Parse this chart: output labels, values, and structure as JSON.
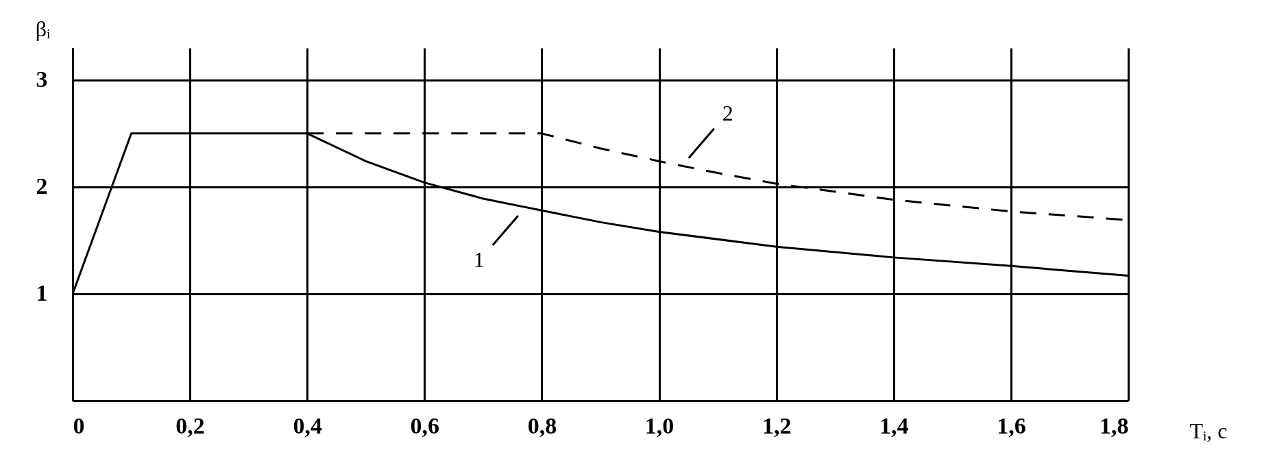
{
  "chart_data": {
    "type": "line",
    "xlabel": "Tᵢ, с",
    "ylabel": "βᵢ",
    "xlim": [
      0,
      1.8
    ],
    "ylim": [
      0,
      3.3
    ],
    "xticks": [
      0,
      {
        "value": 0.2,
        "label": "0,2"
      },
      {
        "value": 0.4,
        "label": "0,4"
      },
      {
        "value": 0.6,
        "label": "0,6"
      },
      {
        "value": 0.8,
        "label": "0,8"
      },
      {
        "value": 1.0,
        "label": "1,0"
      },
      {
        "value": 1.2,
        "label": "1,2"
      },
      {
        "value": 1.4,
        "label": "1,4"
      },
      {
        "value": 1.6,
        "label": "1,6"
      },
      {
        "value": 1.8,
        "label": "1,8"
      }
    ],
    "yticks": [
      1,
      2,
      3
    ],
    "grid": true,
    "series": [
      {
        "color": "#000000",
        "line_style": "solid",
        "x": [
          0,
          0.1,
          0.4,
          0.5,
          0.6,
          0.7,
          0.8,
          0.9,
          1.0,
          1.2,
          1.4,
          1.6,
          1.8
        ],
        "values": [
          1,
          2.5,
          2.5,
          2.24,
          2.04,
          1.89,
          1.78,
          1.67,
          1.58,
          1.44,
          1.34,
          1.26,
          1.17
        ]
      },
      {
        "color": "#000000",
        "line_style": "dashed",
        "x": [
          0.4,
          0.8,
          0.9,
          1.0,
          1.1,
          1.2,
          1.4,
          1.6,
          1.8
        ],
        "values": [
          2.5,
          2.5,
          2.36,
          2.24,
          2.13,
          2.03,
          1.88,
          1.77,
          1.69
        ]
      }
    ],
    "annotations": [
      {
        "text": "1",
        "x": 0.77,
        "y": 1.8
      },
      {
        "text": "2",
        "x": 1.04,
        "y": 2.2
      }
    ]
  }
}
